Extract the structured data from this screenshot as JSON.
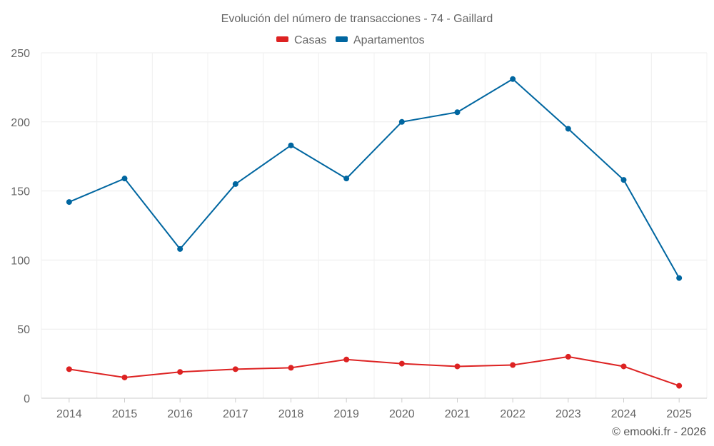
{
  "chart_data": {
    "type": "line",
    "title": "Evolución del número de transacciones - 74 - Gaillard",
    "xlabel": "",
    "ylabel": "",
    "categories": [
      "2014",
      "2015",
      "2016",
      "2017",
      "2018",
      "2019",
      "2020",
      "2021",
      "2022",
      "2023",
      "2024",
      "2025"
    ],
    "ylim": [
      0,
      250
    ],
    "yticks": [
      0,
      50,
      100,
      150,
      200,
      250
    ],
    "grid": true,
    "legend_position": "top-center",
    "series": [
      {
        "name": "Casas",
        "color": "#dd2222",
        "values": [
          21,
          15,
          19,
          21,
          22,
          28,
          25,
          23,
          24,
          30,
          23,
          9
        ]
      },
      {
        "name": "Apartamentos",
        "color": "#0066a0",
        "values": [
          142,
          159,
          108,
          155,
          183,
          159,
          200,
          207,
          231,
          195,
          158,
          87
        ]
      }
    ]
  },
  "credit": "© emooki.fr - 2026"
}
